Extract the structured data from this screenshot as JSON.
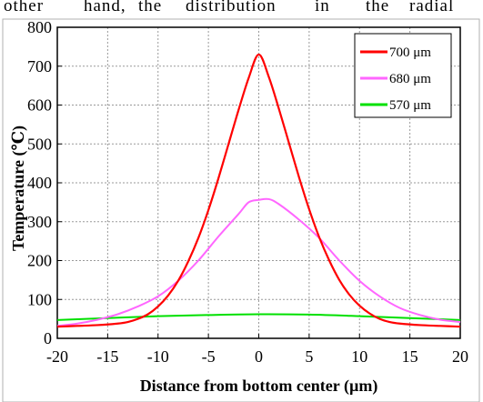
{
  "header_text": {
    "cut_words": [
      "other",
      "hand,",
      "the",
      "distribution",
      "in",
      "the",
      "radial"
    ]
  },
  "colors": {
    "series_700": "#ff0000",
    "series_680": "#ff66ff",
    "series_570": "#00e000",
    "grid": "#9a9a9a",
    "axis": "#000000"
  },
  "chart_data": {
    "type": "line",
    "title": "",
    "xlabel": "Distance from bottom center (µm)",
    "ylabel": "Temperature (℃)",
    "xlim": [
      -20,
      20
    ],
    "ylim": [
      0,
      800
    ],
    "x_ticks": [
      "-20",
      "-15",
      "-10",
      "-5",
      "0",
      "5",
      "10",
      "15",
      "20"
    ],
    "y_ticks": [
      "0",
      "100",
      "200",
      "300",
      "400",
      "500",
      "600",
      "700",
      "800"
    ],
    "grid": true,
    "legend_position": "top-right",
    "series": [
      {
        "name": "700 μm",
        "color": "#ff0000",
        "x": [
          -20,
          -18,
          -16,
          -14,
          -13,
          -12,
          -11,
          -10,
          -9,
          -8,
          -7,
          -6,
          -5,
          -4,
          -3,
          -2,
          -1,
          0,
          1,
          2,
          3,
          4,
          5,
          6,
          7,
          8,
          9,
          10,
          11,
          12,
          13,
          14,
          16,
          18,
          20
        ],
        "y": [
          30,
          32,
          34,
          38,
          42,
          50,
          62,
          82,
          110,
          148,
          198,
          258,
          330,
          412,
          500,
          588,
          670,
          730,
          672,
          590,
          502,
          414,
          332,
          260,
          200,
          150,
          112,
          84,
          64,
          50,
          42,
          38,
          34,
          32,
          30
        ]
      },
      {
        "name": "680 μm",
        "color": "#ff66ff",
        "x": [
          -20,
          -18,
          -16,
          -14,
          -12,
          -10,
          -8,
          -6,
          -4,
          -2,
          -1,
          0,
          1,
          2,
          4,
          6,
          8,
          10,
          12,
          14,
          16,
          18,
          20
        ],
        "y": [
          32,
          38,
          48,
          62,
          82,
          108,
          148,
          200,
          262,
          320,
          350,
          356,
          358,
          345,
          305,
          258,
          200,
          148,
          108,
          78,
          60,
          48,
          42
        ]
      },
      {
        "name": "570 μm",
        "color": "#00e000",
        "x": [
          -20,
          -15,
          -10,
          -5,
          0,
          5,
          10,
          15,
          20
        ],
        "y": [
          47,
          52,
          57,
          60,
          62,
          61,
          57,
          52,
          47
        ]
      }
    ]
  }
}
